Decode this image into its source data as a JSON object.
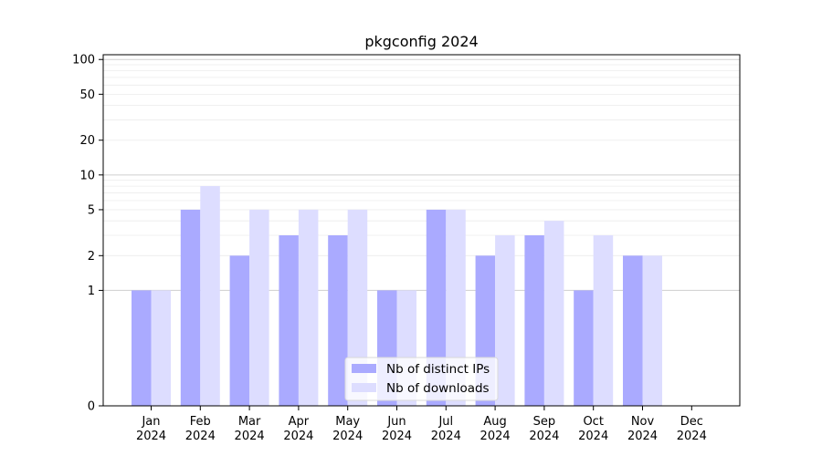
{
  "chart_data": {
    "type": "bar",
    "title": "pkgconfig 2024",
    "categories": [
      [
        "Jan",
        "2024"
      ],
      [
        "Feb",
        "2024"
      ],
      [
        "Mar",
        "2024"
      ],
      [
        "Apr",
        "2024"
      ],
      [
        "May",
        "2024"
      ],
      [
        "Jun",
        "2024"
      ],
      [
        "Jul",
        "2024"
      ],
      [
        "Aug",
        "2024"
      ],
      [
        "Sep",
        "2024"
      ],
      [
        "Oct",
        "2024"
      ],
      [
        "Nov",
        "2024"
      ],
      [
        "Dec",
        "2024"
      ]
    ],
    "series": [
      {
        "name": "Nb of distinct IPs",
        "color": "#aaaaff",
        "values": [
          1,
          5,
          2,
          3,
          3,
          1,
          5,
          2,
          3,
          1,
          2,
          0
        ]
      },
      {
        "name": "Nb of downloads",
        "color": "#ddddff",
        "values": [
          1,
          8,
          5,
          5,
          5,
          1,
          5,
          3,
          4,
          3,
          2,
          0
        ]
      }
    ],
    "yscale": "symlog",
    "ylim": [
      0,
      110
    ],
    "yticks": [
      {
        "value": 0,
        "label": "0"
      },
      {
        "value": 1,
        "label": "1"
      },
      {
        "value": 2,
        "label": "2"
      },
      {
        "value": 5,
        "label": "5"
      },
      {
        "value": 10,
        "label": "10"
      },
      {
        "value": 20,
        "label": "20"
      },
      {
        "value": 50,
        "label": "50"
      },
      {
        "value": 100,
        "label": "100"
      }
    ],
    "grid": true,
    "legend_position": "bottom-center"
  }
}
